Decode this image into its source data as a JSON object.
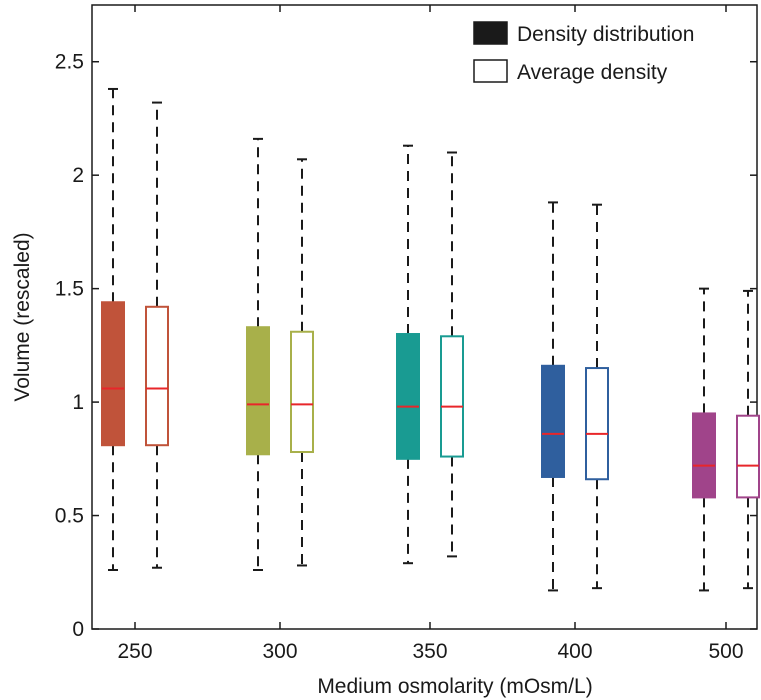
{
  "chart_data": {
    "type": "box",
    "xlabel": "Medium osmolarity (mOsm/L)",
    "ylabel": "Volume (rescaled)",
    "ylim": [
      0,
      2.75
    ],
    "yticks": [
      0,
      0.5,
      1,
      1.5,
      2,
      2.5
    ],
    "ytick_labels": [
      "0",
      "0.5",
      "1",
      "1.5",
      "2",
      "2.5"
    ],
    "categories": [
      "250",
      "300",
      "350",
      "400",
      "500"
    ],
    "legend": {
      "position": "top-right",
      "entries": [
        {
          "label": "Density distribution",
          "style": "filled"
        },
        {
          "label": "Average density",
          "style": "outline"
        }
      ]
    },
    "colors": [
      "#c0533a",
      "#a8b04a",
      "#199b92",
      "#2f5f9e",
      "#a0448a"
    ],
    "median_color": "#e8262a",
    "series": [
      {
        "name": "Density distribution",
        "style": "filled",
        "boxes": [
          {
            "category": "250",
            "whisker_low": 0.26,
            "q1": 0.81,
            "median": 1.06,
            "q3": 1.44,
            "whisker_high": 2.38
          },
          {
            "category": "300",
            "whisker_low": 0.26,
            "q1": 0.77,
            "median": 0.99,
            "q3": 1.33,
            "whisker_high": 2.16
          },
          {
            "category": "350",
            "whisker_low": 0.29,
            "q1": 0.75,
            "median": 0.98,
            "q3": 1.3,
            "whisker_high": 2.13
          },
          {
            "category": "400",
            "whisker_low": 0.17,
            "q1": 0.67,
            "median": 0.86,
            "q3": 1.16,
            "whisker_high": 1.88
          },
          {
            "category": "500",
            "whisker_low": 0.17,
            "q1": 0.58,
            "median": 0.72,
            "q3": 0.95,
            "whisker_high": 1.5
          }
        ]
      },
      {
        "name": "Average density",
        "style": "outline",
        "boxes": [
          {
            "category": "250",
            "whisker_low": 0.27,
            "q1": 0.81,
            "median": 1.06,
            "q3": 1.42,
            "whisker_high": 2.32
          },
          {
            "category": "300",
            "whisker_low": 0.28,
            "q1": 0.78,
            "median": 0.99,
            "q3": 1.31,
            "whisker_high": 2.07
          },
          {
            "category": "350",
            "whisker_low": 0.32,
            "q1": 0.76,
            "median": 0.98,
            "q3": 1.29,
            "whisker_high": 2.1
          },
          {
            "category": "400",
            "whisker_low": 0.18,
            "q1": 0.66,
            "median": 0.86,
            "q3": 1.15,
            "whisker_high": 1.87
          },
          {
            "category": "500",
            "whisker_low": 0.18,
            "q1": 0.58,
            "median": 0.72,
            "q3": 0.94,
            "whisker_high": 1.49
          }
        ]
      }
    ]
  }
}
